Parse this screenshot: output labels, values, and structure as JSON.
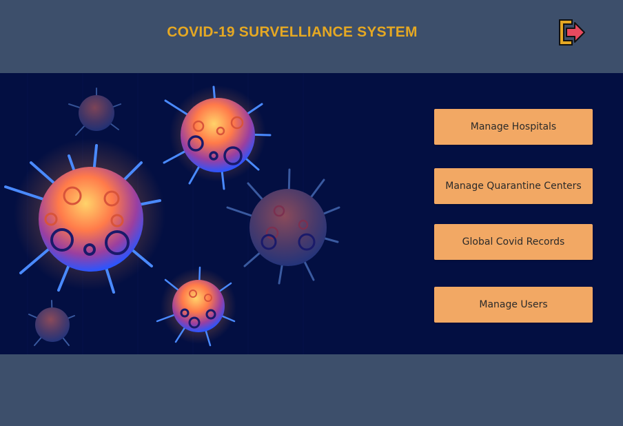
{
  "header": {
    "title": "COVID-19 SURVELLIANCE SYSTEM",
    "logout_icon": "logout-icon"
  },
  "banner": {
    "image": "virus-illustration"
  },
  "menu": {
    "buttons": [
      {
        "label": "Manage Hospitals"
      },
      {
        "label": "Manage Quarantine Centers"
      },
      {
        "label": "Global Covid Records"
      },
      {
        "label": "Manage Users"
      }
    ]
  },
  "colors": {
    "header_bg": "#3d4f6b",
    "title": "#e5a823",
    "banner_bg": "#030f42",
    "button_bg": "#f2a864"
  }
}
